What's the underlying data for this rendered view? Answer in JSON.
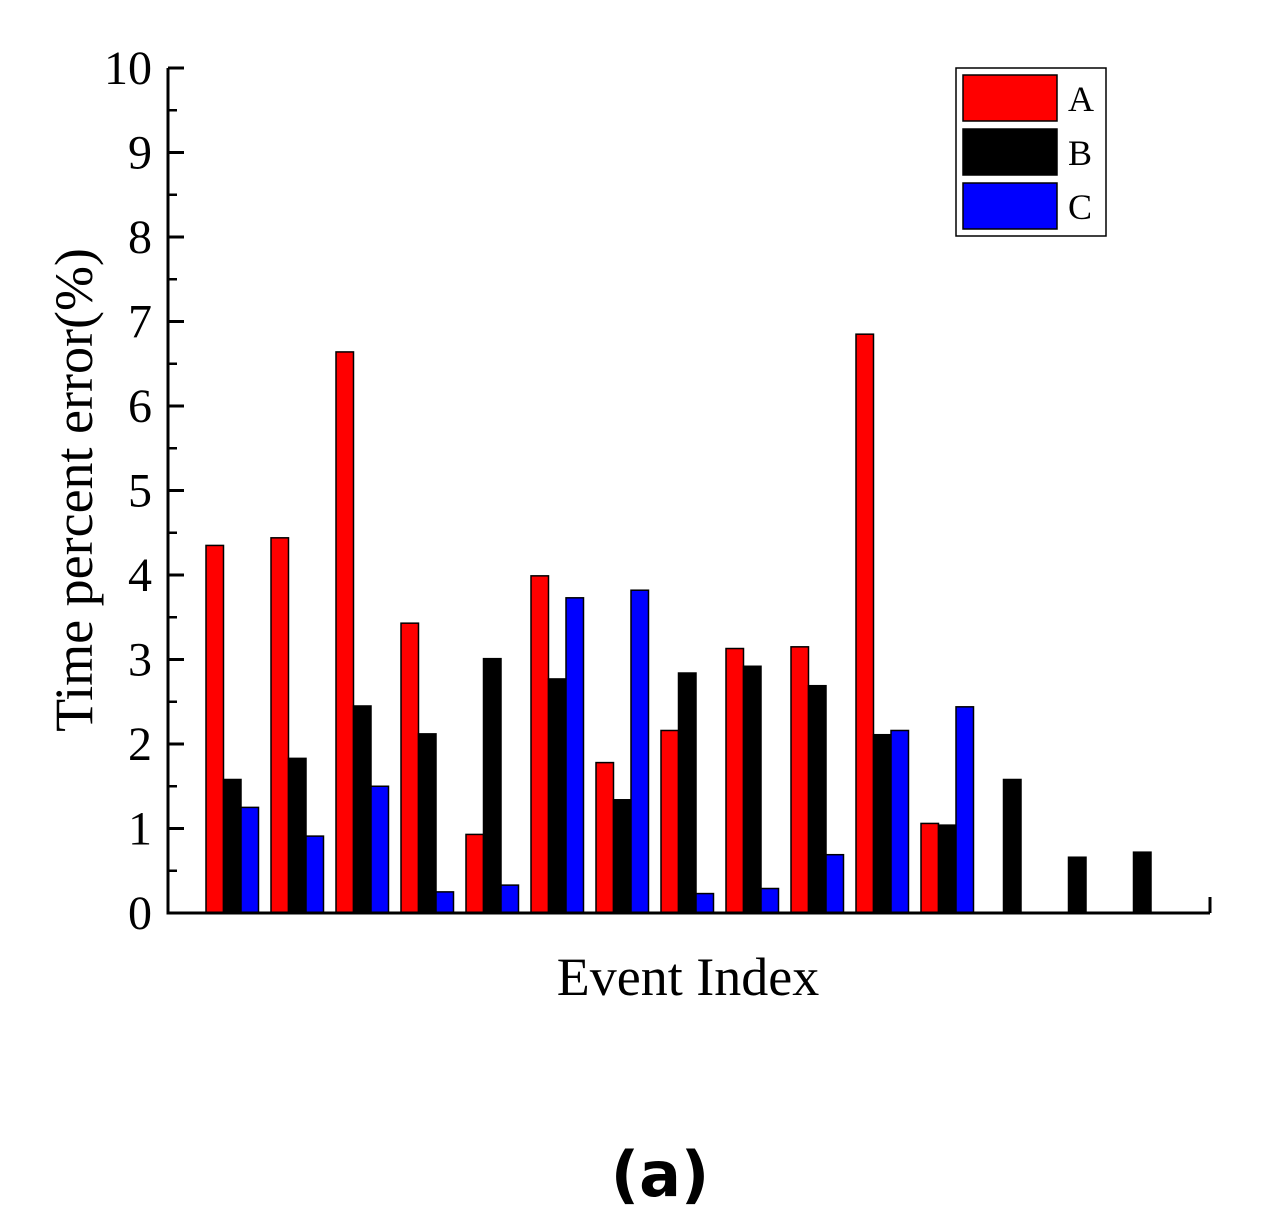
{
  "chart_data": {
    "type": "bar",
    "title": "",
    "xlabel": "Event Index",
    "ylabel": "Time percent error(%)",
    "ylim": [
      0,
      10
    ],
    "yticks": [
      "0",
      "1",
      "2",
      "3",
      "4",
      "5",
      "6",
      "7",
      "8",
      "9",
      "10"
    ],
    "grid": false,
    "legend_position": "top-right",
    "group_count": 15,
    "series": [
      {
        "name": "A",
        "color": "#ff0000",
        "values": [
          4.35,
          4.44,
          6.64,
          3.43,
          0.93,
          3.99,
          1.78,
          2.16,
          3.13,
          3.15,
          6.85,
          1.06,
          null,
          null,
          null
        ]
      },
      {
        "name": "B",
        "color": "#000000",
        "values": [
          1.58,
          1.83,
          2.45,
          2.12,
          3.01,
          2.77,
          1.34,
          2.84,
          2.92,
          2.69,
          2.11,
          1.04,
          1.58,
          0.66,
          0.72
        ]
      },
      {
        "name": "C",
        "color": "#0000ff",
        "values": [
          1.25,
          0.91,
          1.5,
          0.25,
          0.33,
          3.73,
          3.82,
          0.23,
          0.29,
          0.69,
          2.16,
          2.44,
          null,
          null,
          null
        ]
      }
    ],
    "panel_label": "(a)"
  }
}
